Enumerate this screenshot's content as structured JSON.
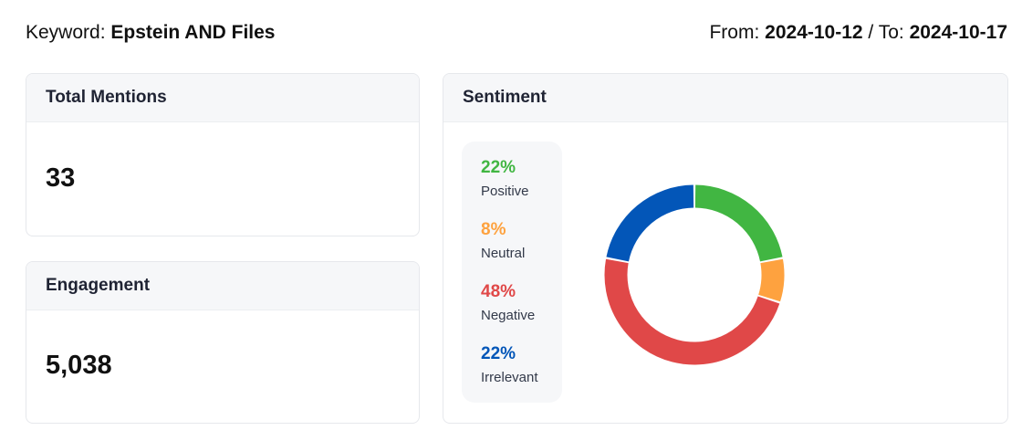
{
  "header": {
    "keyword_label": "Keyword:",
    "keyword": "Epstein AND Files",
    "from_label": "From:",
    "from": "2024-10-12",
    "to_label": "/ To:",
    "to": "2024-10-17"
  },
  "mentions": {
    "title": "Total Mentions",
    "value": "33"
  },
  "engagement": {
    "title": "Engagement",
    "value": "5,038"
  },
  "sentiment": {
    "title": "Sentiment",
    "items": [
      {
        "pct": "22%",
        "label": "Positive",
        "value": 22,
        "color": "#41b642"
      },
      {
        "pct": "8%",
        "label": "Neutral",
        "value": 8,
        "color": "#fea23f"
      },
      {
        "pct": "48%",
        "label": "Negative",
        "value": 48,
        "color": "#e04848"
      },
      {
        "pct": "22%",
        "label": "Irrelevant",
        "value": 22,
        "color": "#0356b8"
      }
    ]
  },
  "chart_data": {
    "type": "pie",
    "variant": "donut",
    "categories": [
      "Positive",
      "Neutral",
      "Negative",
      "Irrelevant"
    ],
    "values": [
      22,
      8,
      48,
      22
    ],
    "colors": [
      "#41b642",
      "#fea23f",
      "#e04848",
      "#0356b8"
    ]
  }
}
